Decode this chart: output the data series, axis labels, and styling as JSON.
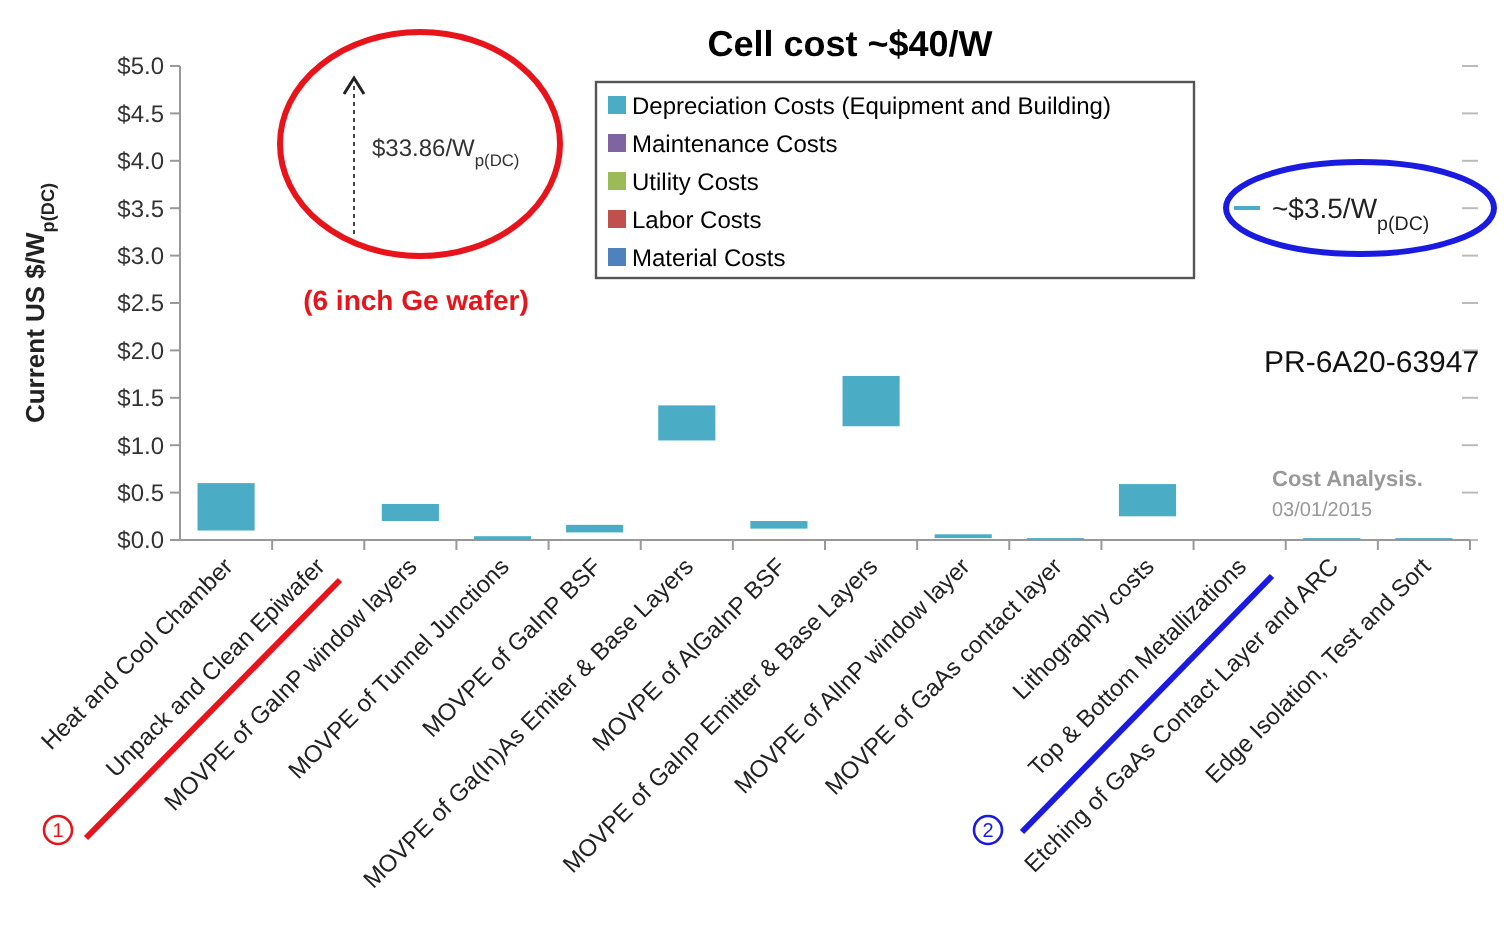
{
  "chart_data": {
    "type": "bar",
    "title": "Cell cost ~$40/W",
    "ylabel": "Current US $/W$_{p(DC)}$",
    "categories": [
      "Heat and Cool Chamber",
      "Unpack and Clean Epiwafer",
      "MOVPE of GaInP window layers",
      "MOVPE of Tunnel Junctions",
      "MOVPE of GaInP BSF",
      "MOVPE of Ga(In)As Emiter & Base Layers",
      "MOVPE of AlGaInP BSF",
      "MOVPE of GaInP Emitter & Base Layers",
      "MOVPE of AlInP window layer",
      "MOVPE of GaAs contact layer",
      "Lithography costs",
      "Top & Bottom Metallizations",
      "Etching of GaAs Contact Layer and ARC",
      "Edge Isolation, Test and Sort"
    ],
    "series": [
      {
        "name": "Depreciation Costs (Equipment and Building)",
        "color": "#4bacc6",
        "base": [
          0.1,
          null,
          0.2,
          0,
          0.08,
          1.05,
          0.12,
          1.2,
          0.02,
          0,
          0.25,
          null,
          0,
          0
        ],
        "values": [
          0.5,
          null,
          0.18,
          0.04,
          0.08,
          0.37,
          0.08,
          0.53,
          0.04,
          0.02,
          0.34,
          null,
          0.02,
          0.02
        ]
      },
      {
        "name": "Maintenance Costs",
        "color": "#8064a2",
        "values": [
          null,
          null,
          null,
          null,
          null,
          null,
          null,
          null,
          null,
          null,
          null,
          null,
          null,
          null
        ]
      },
      {
        "name": "Utility Costs",
        "color": "#9bbb59",
        "values": [
          null,
          null,
          null,
          null,
          null,
          null,
          null,
          null,
          null,
          null,
          null,
          null,
          null,
          null
        ]
      },
      {
        "name": "Labor Costs",
        "color": "#c0504d",
        "values": [
          null,
          null,
          null,
          null,
          null,
          null,
          null,
          null,
          null,
          null,
          null,
          null,
          null,
          null
        ]
      },
      {
        "name": "Material Costs",
        "color": "#4f81bd",
        "values": [
          null,
          null,
          null,
          null,
          null,
          null,
          null,
          null,
          null,
          null,
          null,
          null,
          null,
          null
        ]
      }
    ],
    "ylim": [
      0,
      5
    ],
    "yticks": [
      {
        "value": 0,
        "label": "$0.0"
      },
      {
        "value": 0.5,
        "label": "$0.5"
      },
      {
        "value": 1,
        "label": "$1.0"
      },
      {
        "value": 1.5,
        "label": "$1.5"
      },
      {
        "value": 2,
        "label": "$2.0"
      },
      {
        "value": 2.5,
        "label": "$2.5"
      },
      {
        "value": 3,
        "label": "$3.0"
      },
      {
        "value": 3.5,
        "label": "$3.5"
      },
      {
        "value": 4,
        "label": "$4.0"
      },
      {
        "value": 4.5,
        "label": "$4.5"
      },
      {
        "value": 5,
        "label": "$5.0"
      }
    ],
    "grid": false,
    "legend": "top",
    "annotations": [
      "$33.86/W$_{p(DC)}$",
      "(6 inch Ge wafer)",
      "~$3.5/W$_{p(DC)}$",
      "PR-6A20-63947",
      "Cost Analysis.",
      "03/01/2015",
      "1",
      "2"
    ]
  }
}
